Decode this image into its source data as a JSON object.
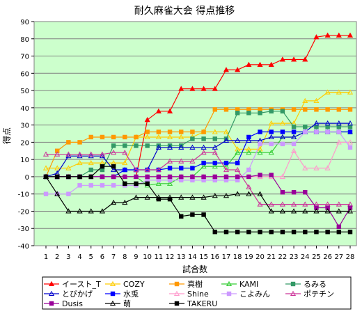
{
  "chart_data": {
    "type": "line",
    "title": "耐久麻雀大会 得点推移",
    "xlabel": "試合数",
    "ylabel": "得点",
    "x": [
      1,
      2,
      3,
      4,
      5,
      6,
      7,
      8,
      9,
      10,
      11,
      12,
      13,
      14,
      15,
      16,
      17,
      18,
      19,
      20,
      21,
      22,
      23,
      24,
      25,
      26,
      27,
      28
    ],
    "ylim": [
      -40,
      90
    ],
    "yticks": [
      -40,
      -30,
      -20,
      -10,
      0,
      10,
      20,
      30,
      40,
      50,
      60,
      70,
      80,
      90
    ],
    "grid": true,
    "plot_background": "#ccffcc",
    "legend_position": "bottom",
    "series": [
      {
        "name": "イースト_T",
        "color": "#ff0000",
        "marker": "triangle-filled",
        "values": [
          0,
          0,
          0,
          0,
          0,
          0,
          0,
          0,
          0,
          33,
          38,
          38,
          51,
          51,
          51,
          51,
          62,
          62,
          65,
          65,
          65,
          68,
          68,
          68,
          81,
          82,
          82,
          82
        ]
      },
      {
        "name": "COZY",
        "color": "#ffcc00",
        "marker": "triangle-open",
        "values": [
          5,
          5,
          5,
          8,
          8,
          8,
          8,
          8,
          23,
          23,
          23,
          23,
          23,
          23,
          26,
          26,
          26,
          16,
          16,
          16,
          31,
          31,
          31,
          44,
          44,
          49,
          49,
          49
        ]
      },
      {
        "name": "真樹",
        "color": "#ff9900",
        "marker": "square-filled",
        "values": [
          0,
          15,
          20,
          20,
          23,
          23,
          23,
          23,
          23,
          26,
          26,
          26,
          26,
          26,
          26,
          39,
          39,
          39,
          39,
          39,
          39,
          39,
          39,
          39,
          39,
          39,
          39,
          39
        ]
      },
      {
        "name": "KAMI",
        "color": "#33cc33",
        "marker": "triangle-open",
        "values": [
          0,
          0,
          0,
          0,
          0,
          0,
          0,
          0,
          0,
          -5,
          -4,
          -4,
          0,
          0,
          6,
          6,
          6,
          14,
          14,
          14,
          14,
          23,
          23,
          26,
          26,
          26,
          26,
          26
        ]
      },
      {
        "name": "るみる",
        "color": "#339966",
        "marker": "square-filled",
        "values": [
          0,
          0,
          0,
          0,
          4,
          4,
          18,
          18,
          18,
          18,
          18,
          18,
          18,
          22,
          22,
          22,
          22,
          37,
          37,
          37,
          38,
          38,
          29,
          29,
          29,
          29,
          29,
          29
        ]
      },
      {
        "name": "とびかげ",
        "color": "#0000cc",
        "marker": "triangle-open",
        "values": [
          0,
          2,
          12,
          12,
          12,
          12,
          4,
          4,
          4,
          4,
          17,
          17,
          17,
          17,
          17,
          17,
          21,
          21,
          21,
          21,
          23,
          23,
          23,
          26,
          31,
          31,
          31,
          31
        ]
      },
      {
        "name": "水兎",
        "color": "#0000ff",
        "marker": "square-filled",
        "values": [
          0,
          0,
          0,
          0,
          0,
          0,
          0,
          4,
          4,
          4,
          4,
          5,
          5,
          5,
          8,
          8,
          8,
          8,
          23,
          26,
          26,
          26,
          26,
          26,
          26,
          26,
          26,
          26
        ]
      },
      {
        "name": "Shine",
        "color": "#ff99cc",
        "marker": "triangle-open",
        "values": [
          0,
          0,
          0,
          0,
          0,
          0,
          0,
          0,
          0,
          0,
          0,
          0,
          0,
          0,
          0,
          0,
          0,
          0,
          0,
          0,
          0,
          0,
          15,
          5,
          5,
          5,
          20,
          20
        ]
      },
      {
        "name": "こよみん",
        "color": "#cc99ff",
        "marker": "square-filled",
        "values": [
          -10,
          -10,
          -10,
          -5,
          -5,
          -5,
          -5,
          -5,
          -5,
          -2,
          -2,
          -2,
          -2,
          -2,
          -2,
          -2,
          -2,
          -2,
          4,
          19,
          19,
          19,
          19,
          26,
          26,
          26,
          26,
          17
        ]
      },
      {
        "name": "ポテチン",
        "color": "#cc3399",
        "marker": "triangle-open",
        "values": [
          13,
          13,
          13,
          13,
          13,
          13,
          14,
          14,
          4,
          4,
          4,
          9,
          9,
          9,
          14,
          14,
          4,
          4,
          -6,
          -16,
          -16,
          -16,
          -16,
          -16,
          -16,
          -16,
          -16,
          -16
        ]
      },
      {
        "name": "Dusis",
        "color": "#990099",
        "marker": "square-filled",
        "values": [
          0,
          0,
          0,
          0,
          0,
          0,
          0,
          0,
          0,
          0,
          0,
          0,
          0,
          0,
          0,
          0,
          0,
          0,
          0,
          1,
          1,
          -9,
          -9,
          -9,
          -18,
          -18,
          -29,
          -18
        ]
      },
      {
        "name": "萌",
        "color": "#000000",
        "marker": "triangle-open",
        "values": [
          0,
          -10,
          -20,
          -20,
          -20,
          -20,
          -15,
          -15,
          -12,
          -12,
          -12,
          -12,
          -12,
          -12,
          -12,
          -11,
          -11,
          -10,
          -10,
          -10,
          -20,
          -20,
          -20,
          -20,
          -20,
          -20,
          -20,
          -20
        ]
      },
      {
        "name": "TAKERU",
        "color": "#000000",
        "marker": "square-filled",
        "values": [
          0,
          0,
          0,
          0,
          0,
          6,
          6,
          -4,
          -4,
          -4,
          -13,
          -13,
          -23,
          -22,
          -22,
          -32,
          -32,
          -32,
          -32,
          -32,
          -32,
          -32,
          -32,
          -32,
          -32,
          -32,
          -32,
          -32
        ]
      }
    ]
  }
}
